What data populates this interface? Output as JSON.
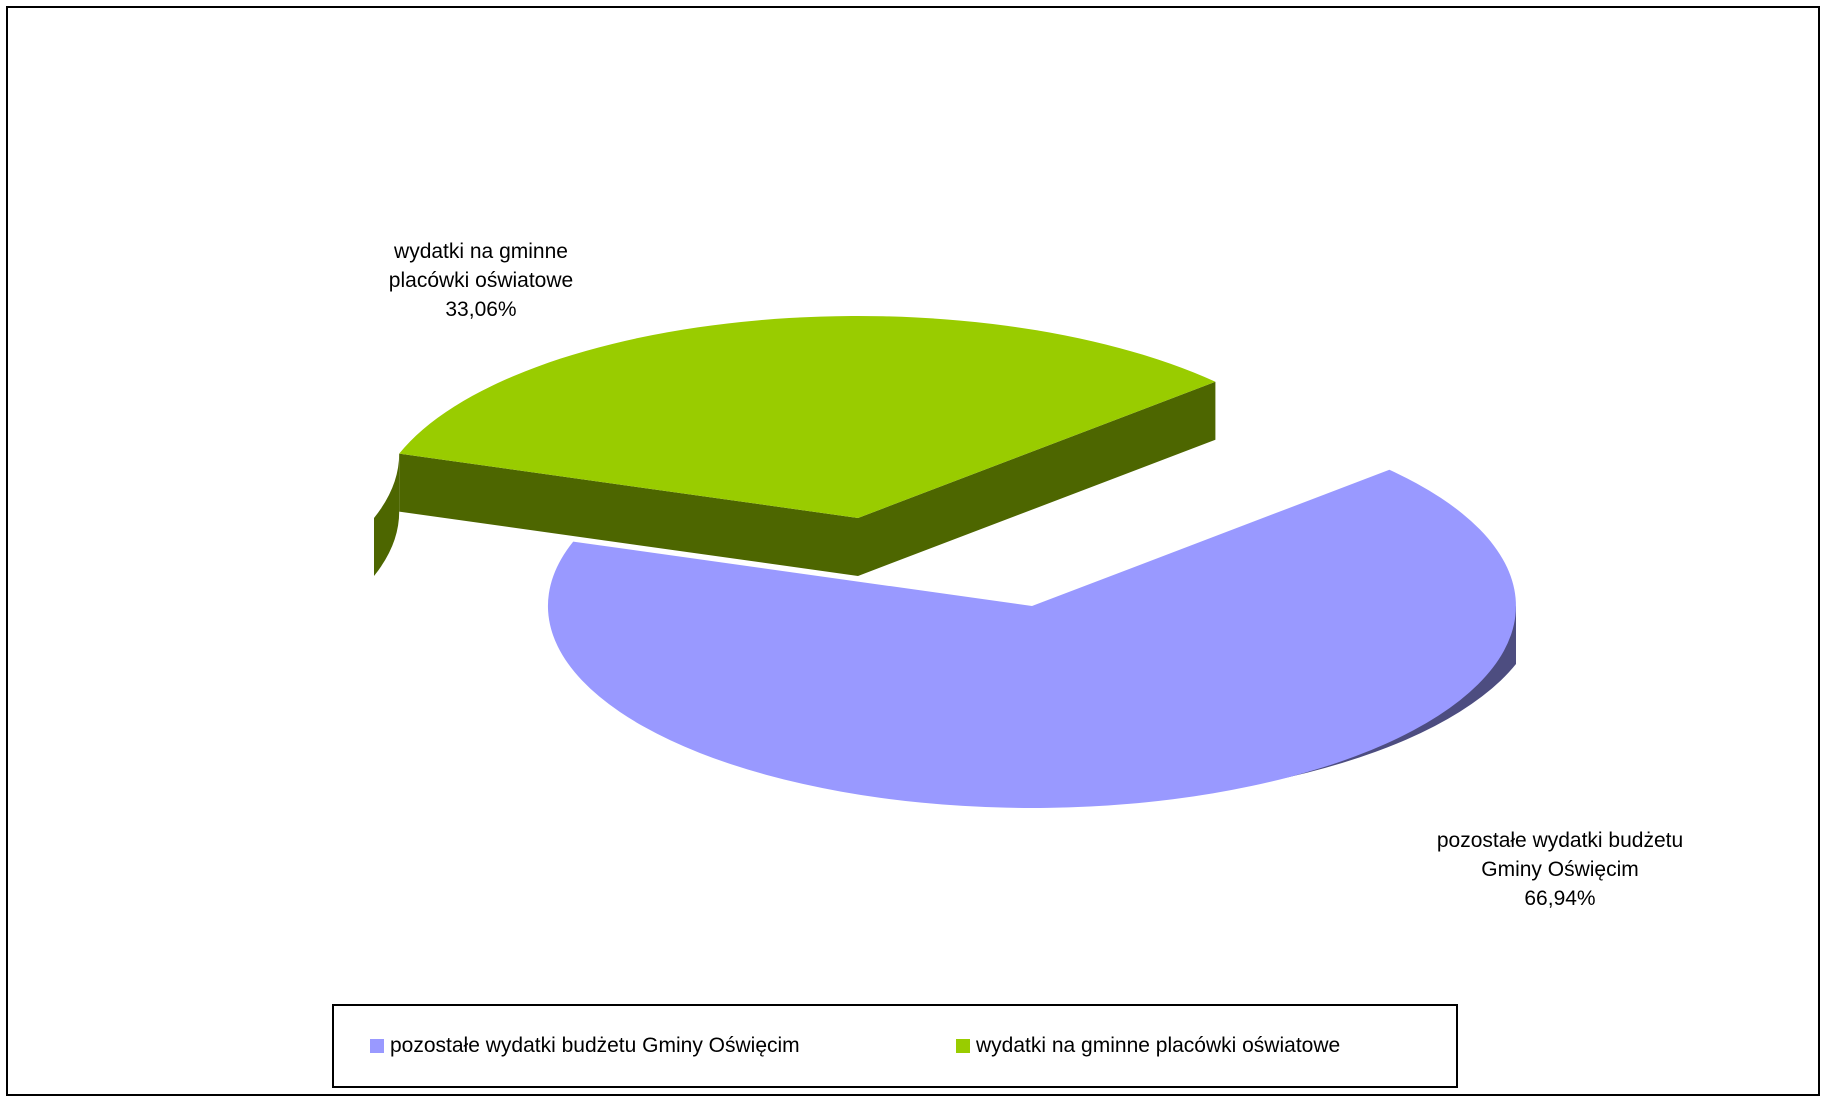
{
  "chart_data": {
    "type": "pie",
    "title": "",
    "three_d": true,
    "exploded": true,
    "slices": [
      {
        "name": "wydatki na gminne placówki oświatowe",
        "label_lines": [
          "wydatki na gminne",
          "placówki oświatowe",
          "33,06%"
        ],
        "value": 33.06,
        "value_label": "33,06%",
        "color": "#99CC00",
        "side_color": "#4D6600"
      },
      {
        "name": "pozostałe wydatki budżetu Gminy Oświęcim",
        "label_lines": [
          "pozostałe wydatki budżetu",
          "Gminy Oświęcim",
          "66,94%"
        ],
        "value": 66.94,
        "value_label": "66,94%",
        "color": "#9999FF",
        "side_color": "#4D4D80"
      }
    ],
    "legend": {
      "placement": "bottom",
      "entries": [
        {
          "label": "pozostałe wydatki budżetu Gminy Oświęcim",
          "color": "#9999FF"
        },
        {
          "label": "wydatki na gminne placówki oświatowe",
          "color": "#99CC00"
        }
      ]
    }
  }
}
